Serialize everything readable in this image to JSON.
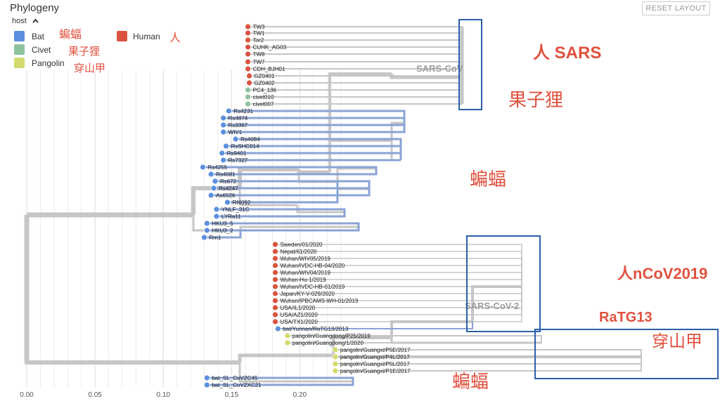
{
  "panel": {
    "title": "Phylogeny",
    "reset_label": "RESET LAYOUT"
  },
  "legend": {
    "header": "host",
    "header_icon": "chevron-up-icon",
    "entries": [
      {
        "label": "Bat",
        "color": "#5b8fde"
      },
      {
        "label": "Civet",
        "color": "#8ec3a0"
      },
      {
        "label": "Pangolin",
        "color": "#d4db6e"
      },
      {
        "label": "Human",
        "color": "#d9533f"
      }
    ],
    "annotations": {
      "bat": "蝙蝠",
      "civet": "果子狸",
      "pangolin": "穿山甲",
      "human": "人"
    }
  },
  "annotations": {
    "sars": "人 SARS",
    "civet": "果子狸",
    "bat_mid": "蝙蝠",
    "ncov": "人nCoV2019",
    "ratg13": "RaTG13",
    "pangolin": "穿山甲",
    "bat_bottom": "蝙蝠"
  },
  "colors": {
    "human": "#d9533f",
    "bat": "#5b8fde",
    "civet": "#8ec3a0",
    "pangolin": "#d4db6e",
    "annotation": "#e0513f",
    "box": "#2b5fa8",
    "branch": "#c6c6c6"
  },
  "chart_data": {
    "type": "tree",
    "xlim": [
      0,
      0.23
    ],
    "x_ticks": [
      "0.00",
      "0.05",
      "0.10",
      "0.15",
      "0.20"
    ],
    "clade_labels": [
      "SARS-CoV",
      "SARS-CoV-2"
    ],
    "tips": [
      {
        "name": "TW3",
        "host": "human",
        "div": 0.162
      },
      {
        "name": "TW1",
        "host": "human",
        "div": 0.162
      },
      {
        "name": "Tor2",
        "host": "human",
        "div": 0.162
      },
      {
        "name": "CUHK_AG03",
        "host": "human",
        "div": 0.162
      },
      {
        "name": "TW8",
        "host": "human",
        "div": 0.162
      },
      {
        "name": "TW7",
        "host": "human",
        "div": 0.162
      },
      {
        "name": "CDH_BJH01",
        "host": "human",
        "div": 0.162
      },
      {
        "name": "GZ0401",
        "host": "human",
        "div": 0.163
      },
      {
        "name": "GZ0402",
        "host": "human",
        "div": 0.163
      },
      {
        "name": "PC4_136",
        "host": "civet",
        "div": 0.162
      },
      {
        "name": "civet010",
        "host": "civet",
        "div": 0.162
      },
      {
        "name": "civet007",
        "host": "civet",
        "div": 0.162
      },
      {
        "name": "Rs4231",
        "host": "bat",
        "div": 0.148
      },
      {
        "name": "Rs4874",
        "host": "bat",
        "div": 0.144
      },
      {
        "name": "Rs3367",
        "host": "bat",
        "div": 0.144
      },
      {
        "name": "WIV1",
        "host": "bat",
        "div": 0.144
      },
      {
        "name": "Rs4084",
        "host": "bat",
        "div": 0.153
      },
      {
        "name": "RsSHC014",
        "host": "bat",
        "div": 0.146
      },
      {
        "name": "Rs9401",
        "host": "bat",
        "div": 0.143
      },
      {
        "name": "Rs7327",
        "host": "bat",
        "div": 0.144
      },
      {
        "name": "Rs4255",
        "host": "bat",
        "div": 0.129
      },
      {
        "name": "Rs4081",
        "host": "bat",
        "div": 0.135
      },
      {
        "name": "Rs672",
        "host": "bat",
        "div": 0.138
      },
      {
        "name": "Rs4247",
        "host": "bat",
        "div": 0.137
      },
      {
        "name": "As6526",
        "host": "bat",
        "div": 0.135
      },
      {
        "name": "Rf4092",
        "host": "bat",
        "div": 0.147
      },
      {
        "name": "YNLF_31C",
        "host": "bat",
        "div": 0.139
      },
      {
        "name": "LYRa11",
        "host": "bat",
        "div": 0.139
      },
      {
        "name": "HKU3_5",
        "host": "bat",
        "div": 0.132
      },
      {
        "name": "HKU3_2",
        "host": "bat",
        "div": 0.132
      },
      {
        "name": "Rm1",
        "host": "bat",
        "div": 0.13
      },
      {
        "name": "Sweden/01/2020",
        "host": "human",
        "div": 0.182
      },
      {
        "name": "Nepal/61/2020",
        "host": "human",
        "div": 0.182
      },
      {
        "name": "Wuhan/WIV05/2019",
        "host": "human",
        "div": 0.182
      },
      {
        "name": "Wuhan/IVDC-HB-04/2020",
        "host": "human",
        "div": 0.182
      },
      {
        "name": "Wuhan/WIV04/2019",
        "host": "human",
        "div": 0.182
      },
      {
        "name": "Wuhan-Hu-1/2019",
        "host": "human",
        "div": 0.182
      },
      {
        "name": "Wuhan/IVDC-HB-01/2019",
        "host": "human",
        "div": 0.182
      },
      {
        "name": "Japan/KY-V-029/2020",
        "host": "human",
        "div": 0.182
      },
      {
        "name": "Wuhan/IPBCAMS-WH-01/2019",
        "host": "human",
        "div": 0.182
      },
      {
        "name": "USA/IL1/2020",
        "host": "human",
        "div": 0.182
      },
      {
        "name": "USA/AZ1/2020",
        "host": "human",
        "div": 0.182
      },
      {
        "name": "USA/TX1/2020",
        "host": "human",
        "div": 0.182
      },
      {
        "name": "bat/Yunnan/RaTG13/2013",
        "host": "bat",
        "div": 0.184
      },
      {
        "name": "pangolin/Guangdong/P25/2019",
        "host": "pangolin",
        "div": 0.191
      },
      {
        "name": "pangolin/Guangdong/1/2020",
        "host": "pangolin",
        "div": 0.191
      },
      {
        "name": "pangolin/Guangxi/P5E/2017",
        "host": "pangolin",
        "div": 0.226
      },
      {
        "name": "pangolin/Guangxi/P4L/2017",
        "host": "pangolin",
        "div": 0.226
      },
      {
        "name": "pangolin/Guangxi/P5L/2017",
        "host": "pangolin",
        "div": 0.226
      },
      {
        "name": "pangolin/Guangxi/P1E/2017",
        "host": "pangolin",
        "div": 0.226
      },
      {
        "name": "bat_SL_CoVZC45",
        "host": "bat",
        "div": 0.132
      },
      {
        "name": "bat_SL_CoVZXC21",
        "host": "bat",
        "div": 0.132
      }
    ]
  }
}
